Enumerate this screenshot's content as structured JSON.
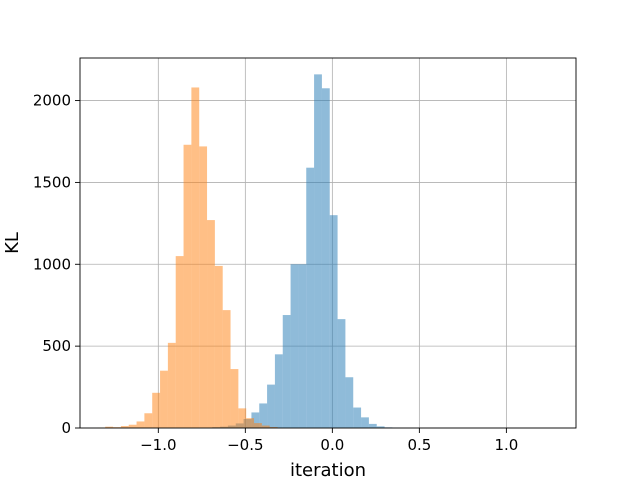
{
  "chart_data": {
    "type": "histogram",
    "xlabel": "iteration",
    "ylabel": "KL",
    "xlim": [
      -1.45,
      1.4
    ],
    "ylim": [
      0,
      2260
    ],
    "xticks": [
      -1.0,
      -0.5,
      0.0,
      0.5,
      1.0
    ],
    "xtick_labels": [
      "−1.0",
      "−0.5",
      "0.0",
      "0.5",
      "1.0"
    ],
    "yticks": [
      0,
      500,
      1000,
      1500,
      2000
    ],
    "ytick_labels": [
      "0",
      "500",
      "1000",
      "1500",
      "2000"
    ],
    "grid": true,
    "series": [
      {
        "color": "#1f77b4",
        "alpha": 0.5,
        "bins": [
          [
            -0.69,
            -0.645,
            5
          ],
          [
            -0.645,
            -0.6,
            8
          ],
          [
            -0.6,
            -0.555,
            15
          ],
          [
            -0.555,
            -0.51,
            28
          ],
          [
            -0.51,
            -0.465,
            55
          ],
          [
            -0.465,
            -0.42,
            95
          ],
          [
            -0.42,
            -0.375,
            150
          ],
          [
            -0.375,
            -0.33,
            265
          ],
          [
            -0.33,
            -0.285,
            450
          ],
          [
            -0.285,
            -0.24,
            690
          ],
          [
            -0.24,
            -0.195,
            1000
          ],
          [
            -0.195,
            -0.15,
            1000
          ],
          [
            -0.15,
            -0.105,
            1590
          ],
          [
            -0.105,
            -0.06,
            2160
          ],
          [
            -0.06,
            -0.015,
            2075
          ],
          [
            -0.015,
            0.03,
            1300
          ],
          [
            0.03,
            0.075,
            665
          ],
          [
            0.075,
            0.12,
            310
          ],
          [
            0.12,
            0.165,
            125
          ],
          [
            0.165,
            0.21,
            65
          ],
          [
            0.21,
            0.255,
            25
          ],
          [
            0.255,
            0.3,
            10
          ],
          [
            0.3,
            0.345,
            4
          ],
          [
            0.345,
            0.39,
            2
          ]
        ]
      },
      {
        "color": "#ff7f0e",
        "alpha": 0.5,
        "bins": [
          [
            -1.35,
            -1.305,
            3
          ],
          [
            -1.305,
            -1.26,
            8
          ],
          [
            -1.26,
            -1.215,
            5
          ],
          [
            -1.215,
            -1.17,
            12
          ],
          [
            -1.17,
            -1.125,
            20
          ],
          [
            -1.125,
            -1.08,
            40
          ],
          [
            -1.08,
            -1.035,
            90
          ],
          [
            -1.035,
            -0.99,
            215
          ],
          [
            -0.99,
            -0.945,
            350
          ],
          [
            -0.945,
            -0.9,
            520
          ],
          [
            -0.9,
            -0.855,
            1050
          ],
          [
            -0.855,
            -0.81,
            1730
          ],
          [
            -0.81,
            -0.765,
            2080
          ],
          [
            -0.765,
            -0.72,
            1720
          ],
          [
            -0.72,
            -0.675,
            1270
          ],
          [
            -0.675,
            -0.63,
            990
          ],
          [
            -0.63,
            -0.585,
            720
          ],
          [
            -0.585,
            -0.54,
            360
          ],
          [
            -0.54,
            -0.495,
            120
          ],
          [
            -0.495,
            -0.45,
            60
          ],
          [
            -0.45,
            -0.405,
            30
          ],
          [
            -0.405,
            -0.36,
            15
          ],
          [
            -0.36,
            -0.315,
            6
          ]
        ]
      }
    ]
  }
}
